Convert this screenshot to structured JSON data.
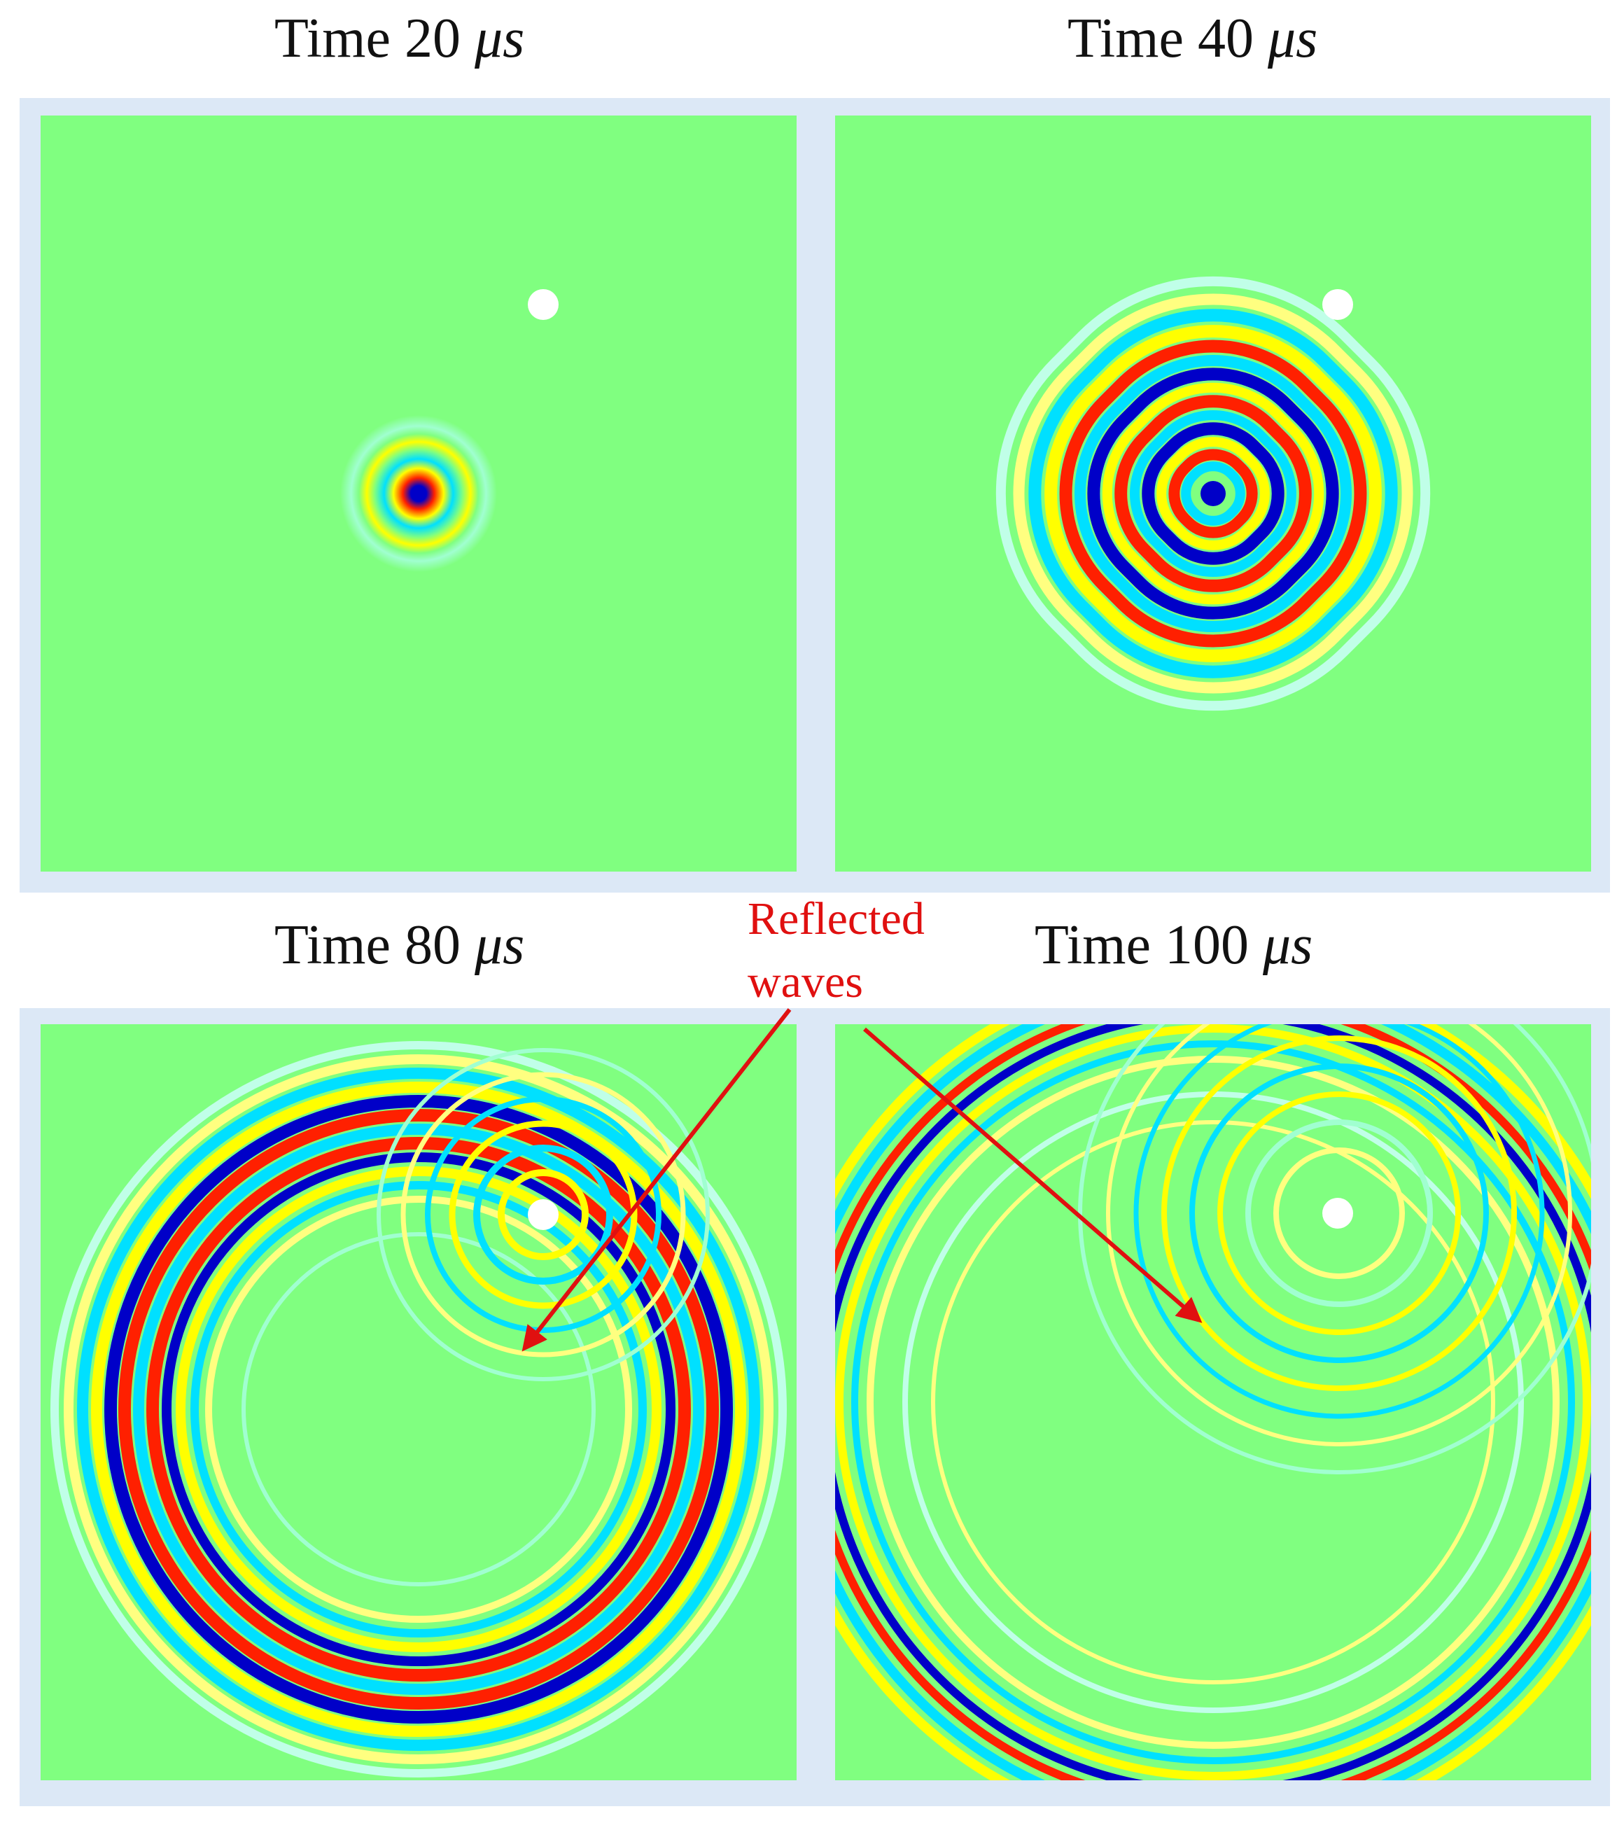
{
  "panels": [
    {
      "title_prefix": "Time 20 ",
      "title_unit": "μs",
      "time_us": 20
    },
    {
      "title_prefix": "Time 40 ",
      "title_unit": "μs",
      "time_us": 40
    },
    {
      "title_prefix": "Time 80 ",
      "title_unit": "μs",
      "time_us": 80
    },
    {
      "title_prefix": "Time 100 ",
      "title_unit": "μs",
      "time_us": 100
    }
  ],
  "annotation": {
    "line1": "Reflected",
    "line2": "waves",
    "color": "#e01010"
  },
  "colors": {
    "background_field": "#80ff80",
    "frame": "#dce8f6",
    "colormap": [
      "#0000c8",
      "#00e0ff",
      "#80ff80",
      "#ffff00",
      "#ff2000",
      "#c00000"
    ]
  }
}
